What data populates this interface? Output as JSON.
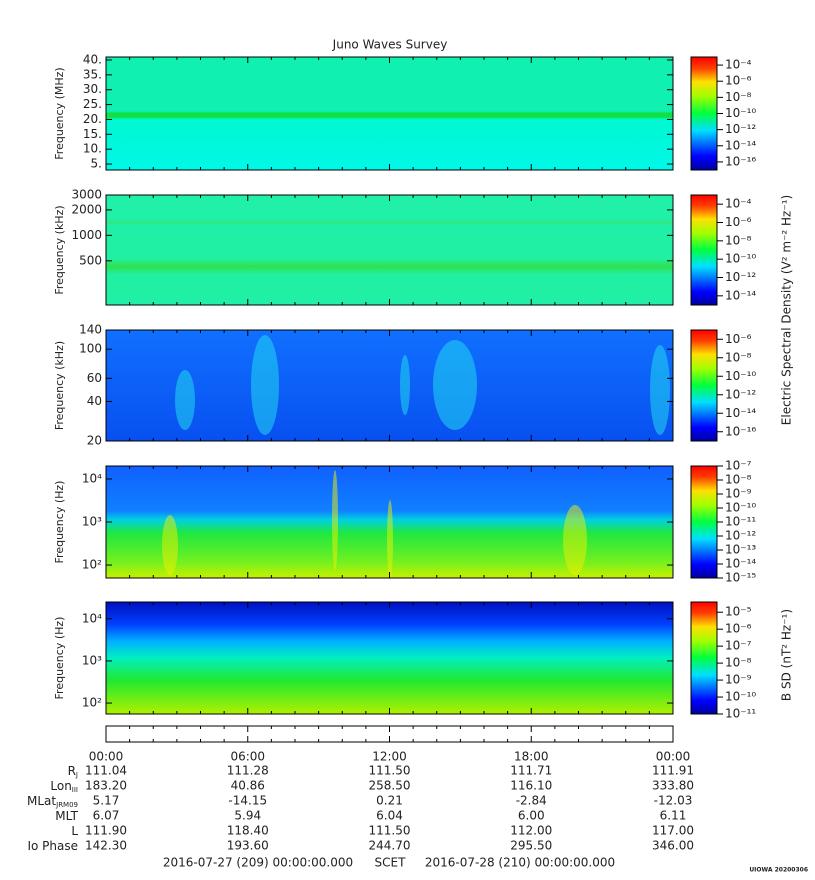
{
  "title": "Juno Waves Survey",
  "chart_data": [
    {
      "type": "spectrogram",
      "ylabel": "Frequency (MHz)",
      "log": false,
      "ylim": [
        3,
        41
      ],
      "yticks": [
        {
          "value": 40,
          "label": "40."
        },
        {
          "value": 35,
          "label": "35."
        },
        {
          "value": 30,
          "label": "30."
        },
        {
          "value": 25,
          "label": "25."
        },
        {
          "value": 20,
          "label": "20."
        },
        {
          "value": 15,
          "label": "15."
        },
        {
          "value": 10,
          "label": "10."
        },
        {
          "value": 5,
          "label": "5."
        }
      ],
      "colorbar": {
        "log": true,
        "lim": [
          1e-17,
          0.001
        ],
        "ticks": [
          {
            "value": 0.0001,
            "label": "10⁻⁴"
          },
          {
            "value": 1e-06,
            "label": "10⁻⁶"
          },
          {
            "value": 1e-08,
            "label": "10⁻⁸"
          },
          {
            "value": 1e-10,
            "label": "10⁻¹⁰"
          },
          {
            "value": 1e-12,
            "label": "10⁻¹²"
          },
          {
            "value": 1e-14,
            "label": "10⁻¹⁴"
          },
          {
            "value": 1e-16,
            "label": "10⁻¹⁶"
          }
        ]
      }
    },
    {
      "type": "spectrogram",
      "ylabel": "Frequency (kHz)",
      "log": true,
      "ylim": [
        150,
        3000
      ],
      "yticks": [
        3000,
        2000,
        1000,
        500
      ],
      "colorbar": {
        "log": true,
        "lim": [
          1e-15,
          0.001
        ],
        "ticks": [
          {
            "value": 0.0001,
            "label": "10⁻⁴"
          },
          {
            "value": 1e-06,
            "label": "10⁻⁶"
          },
          {
            "value": 1e-08,
            "label": "10⁻⁸"
          },
          {
            "value": 1e-10,
            "label": "10⁻¹⁰"
          },
          {
            "value": 1e-12,
            "label": "10⁻¹²"
          },
          {
            "value": 1e-14,
            "label": "10⁻¹⁴"
          }
        ]
      }
    },
    {
      "type": "spectrogram",
      "ylabel": "Frequency (kHz)",
      "log": true,
      "ylim": [
        20,
        140
      ],
      "yticks": [
        140,
        100,
        60,
        40,
        20
      ],
      "colorbar": {
        "log": true,
        "lim": [
          1e-17,
          1e-05
        ],
        "ticks": [
          {
            "value": 1e-06,
            "label": "10⁻⁶"
          },
          {
            "value": 1e-08,
            "label": "10⁻⁸"
          },
          {
            "value": 1e-10,
            "label": "10⁻¹⁰"
          },
          {
            "value": 1e-12,
            "label": "10⁻¹²"
          },
          {
            "value": 1e-14,
            "label": "10⁻¹⁴"
          },
          {
            "value": 1e-16,
            "label": "10⁻¹⁶"
          }
        ]
      }
    },
    {
      "type": "spectrogram",
      "ylabel": "Frequency (Hz)",
      "log": true,
      "ylim": [
        50,
        20000
      ],
      "yticks": [
        {
          "value": 10000,
          "label": "10⁴"
        },
        {
          "value": 1000,
          "label": "10³"
        },
        {
          "value": 100,
          "label": "10²"
        }
      ],
      "colorbar": {
        "log": true,
        "lim": [
          1e-15,
          1e-07
        ],
        "ticks": [
          {
            "value": 1e-07,
            "label": "10⁻⁷"
          },
          {
            "value": 1e-08,
            "label": "10⁻⁸"
          },
          {
            "value": 1e-09,
            "label": "10⁻⁹"
          },
          {
            "value": 1e-10,
            "label": "10⁻¹⁰"
          },
          {
            "value": 1e-11,
            "label": "10⁻¹¹"
          },
          {
            "value": 1e-12,
            "label": "10⁻¹²"
          },
          {
            "value": 1e-13,
            "label": "10⁻¹³"
          },
          {
            "value": 1e-14,
            "label": "10⁻¹⁴"
          },
          {
            "value": 1e-15,
            "label": "10⁻¹⁵"
          }
        ]
      }
    },
    {
      "type": "spectrogram",
      "ylabel": "Frequency (Hz)",
      "log": true,
      "ylim": [
        55,
        25000
      ],
      "yticks": [
        {
          "value": 10000,
          "label": "10⁴"
        },
        {
          "value": 1000,
          "label": "10³"
        },
        {
          "value": 100,
          "label": "10²"
        }
      ],
      "colorbar": {
        "log": true,
        "lim": [
          1e-11,
          4e-05
        ],
        "ticks": [
          {
            "value": 1e-05,
            "label": "10⁻⁵"
          },
          {
            "value": 1e-06,
            "label": "10⁻⁶"
          },
          {
            "value": 1e-07,
            "label": "10⁻⁷"
          },
          {
            "value": 1e-08,
            "label": "10⁻⁸"
          },
          {
            "value": 1e-09,
            "label": "10⁻⁹"
          },
          {
            "value": 1e-10,
            "label": "10⁻¹⁰"
          },
          {
            "value": 1e-11,
            "label": "10⁻¹¹"
          }
        ]
      }
    }
  ],
  "colorbar_labels": [
    "Electric Spectral Density (V² m⁻² Hz⁻¹)",
    "B SD (nT² Hz⁻¹)"
  ],
  "time_axis": [
    "00:00",
    "06:00",
    "12:00",
    "18:00",
    "00:00"
  ],
  "ephemeris": [
    {
      "label": "R",
      "subscript": "J",
      "values": [
        "111.04",
        "111.28",
        "111.50",
        "111.71",
        "111.91"
      ]
    },
    {
      "label": "Lon",
      "subscript": "III",
      "values": [
        "183.20",
        "40.86",
        "258.50",
        "116.10",
        "333.80"
      ]
    },
    {
      "label": "MLat",
      "subscript": "JRM09",
      "values": [
        "5.17",
        "-14.15",
        "0.21",
        "-2.84",
        "-12.03"
      ]
    },
    {
      "label": "MLT",
      "values": [
        "6.07",
        "5.94",
        "6.04",
        "6.00",
        "6.11"
      ]
    },
    {
      "label": "L",
      "values": [
        "111.90",
        "118.40",
        "111.50",
        "112.00",
        "117.00"
      ]
    },
    {
      "label": "Io Phase",
      "values": [
        "142.30",
        "193.60",
        "244.70",
        "295.50",
        "346.00"
      ]
    }
  ],
  "scet": {
    "start": "2016-07-27 (209) 00:00:00.000",
    "label": "SCET",
    "end": "2016-07-28 (210) 00:00:00.000"
  },
  "stamp": "UIOWA 20200306"
}
